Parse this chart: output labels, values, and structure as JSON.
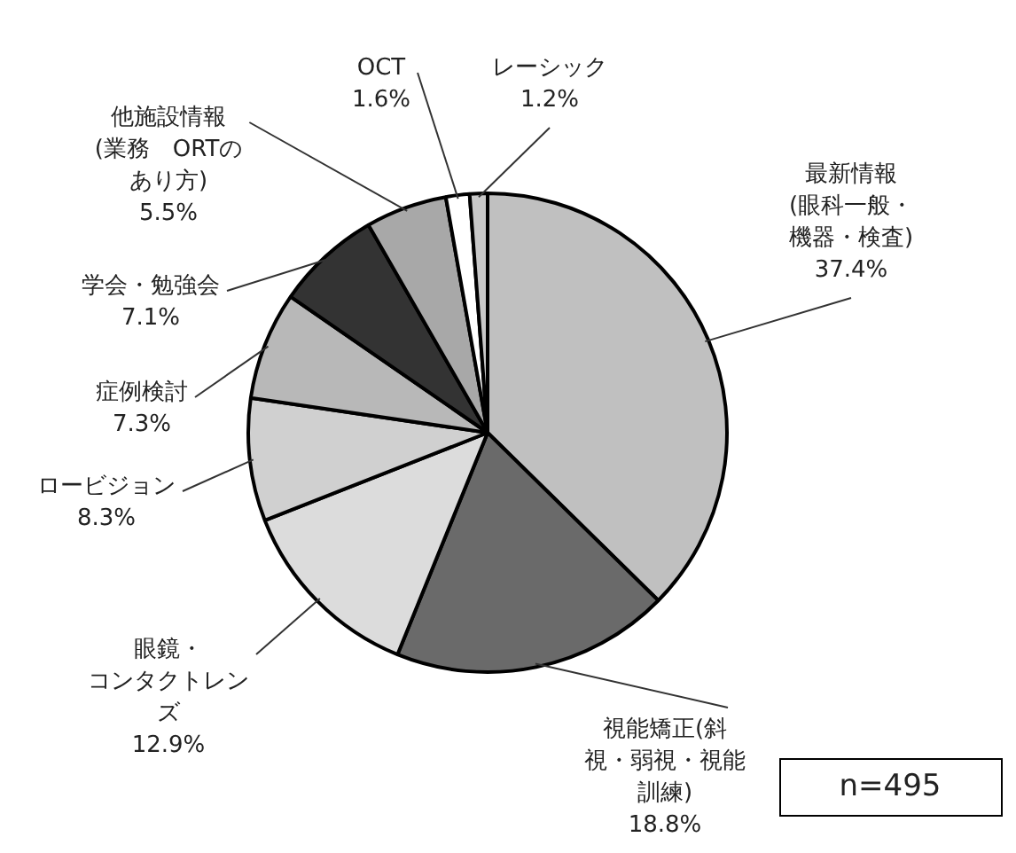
{
  "chart_data": {
    "type": "pie",
    "categories": [
      "最新情報(眼科一般・機器・検査)",
      "視能矯正(斜視・弱視・視能訓練)",
      "眼鏡・コンタクトレンズ",
      "ロービジョン",
      "症例検討",
      "学会・勉強会",
      "他施設情報(業務　ORTのあり方)",
      "OCT",
      "レーシック"
    ],
    "values": [
      37.4,
      18.8,
      12.9,
      8.3,
      7.3,
      7.1,
      5.5,
      1.6,
      1.2
    ],
    "value_labels": [
      "37.4%",
      "18.8%",
      "12.9%",
      "8.3%",
      "7.3%",
      "7.1%",
      "5.5%",
      "1.6%",
      "1.2%"
    ],
    "colors": [
      "#c0c0c0",
      "#6a6a6a",
      "#dcdcdc",
      "#d0d0d0",
      "#b8b8b8",
      "#333333",
      "#a8a8a8",
      "#ffffff",
      "#c8c8c8"
    ],
    "annotations": [
      "n=495"
    ],
    "legend": false
  }
}
